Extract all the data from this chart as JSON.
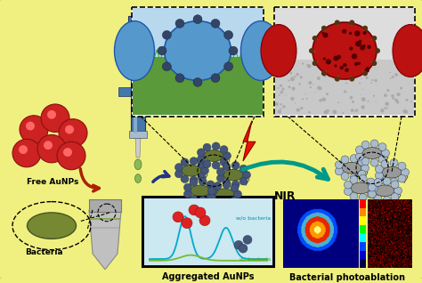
{
  "background_color": "#f0f080",
  "border_color": "#c8c840",
  "labels": {
    "free_aunps": "Free AuNPs",
    "bacteria": "Bacteria",
    "aggregated_aunps": "Aggregated AuNPs",
    "bacterial_photoablation": "Bacterial photoablation",
    "nir": "NIR",
    "wo_bacteria": "w/o bacteria",
    "w_bacteria": "w/ bacteria"
  },
  "colors": {
    "yellow_bg": "#f0f080",
    "red_sphere": "#cc2222",
    "blue_cell": "#4488cc",
    "red_cell": "#bb1111",
    "dark_np": "#445577",
    "gray_np": "#8899aa",
    "green_bacteria": "#667733",
    "teal_arrow": "#009988",
    "red_lightning": "#dd1100",
    "blue_syringe": "#4477aa",
    "dark_blue_arrow": "#223388",
    "red_arrow": "#aa2200",
    "cyan_line": "#00aabb",
    "green_line": "#77bb33",
    "gray_tube": "#b0b0b0"
  }
}
